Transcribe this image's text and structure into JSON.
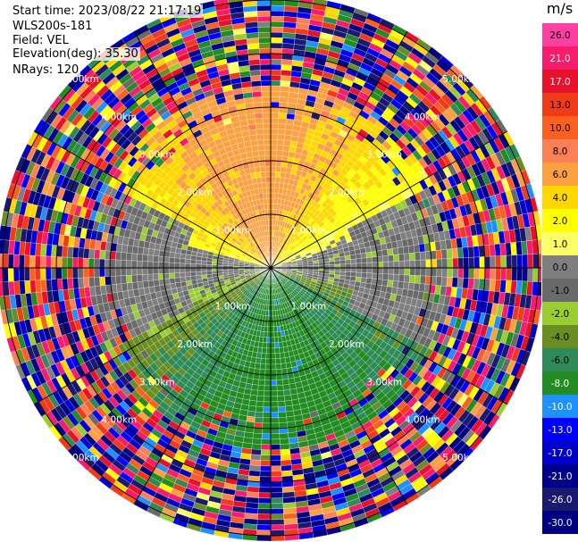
{
  "info": {
    "start_time": "Start time: 2023/08/22 21:17:19",
    "instrument": "WLS200s-181",
    "field": "Field: VEL",
    "elevation": "Elevation(deg): 35.30",
    "nrays": "NRays: 120"
  },
  "chart_data": {
    "type": "heatmap",
    "projection": "polar PPI",
    "field": "VEL",
    "units": "m/s",
    "n_rays": 120,
    "elevation_deg": 35.3,
    "range_rings_km": [
      1.0,
      2.0,
      3.0,
      4.0,
      5.0
    ],
    "range_ring_labels": [
      "1.00km",
      "2.00km",
      "3.00km",
      "4.00km",
      "5.00km"
    ],
    "colorbar": {
      "title": "m/s",
      "ticks": [
        "26.0",
        "21.0",
        "17.0",
        "13.0",
        "10.0",
        "8.0",
        "6.0",
        "4.0",
        "2.0",
        "1.0",
        "0.0",
        "-1.0",
        "-2.0",
        "-4.0",
        "-6.0",
        "-8.0",
        "-10.0",
        "-13.0",
        "-17.0",
        "-21.0",
        "-26.0",
        "-30.0"
      ],
      "colors": [
        "#ff3fa2",
        "#f81c6c",
        "#e8102b",
        "#f03a18",
        "#fb6020",
        "#fc8055",
        "#fda040",
        "#ffd700",
        "#ffff00",
        "#ffff66",
        "#7f7f7f",
        "#6a6a6a",
        "#9acd32",
        "#6b8e23",
        "#2e8b57",
        "#228b22",
        "#1e90ff",
        "#0000ff",
        "#0000cd",
        "#00008b",
        "#191970",
        "#000080"
      ]
    }
  }
}
